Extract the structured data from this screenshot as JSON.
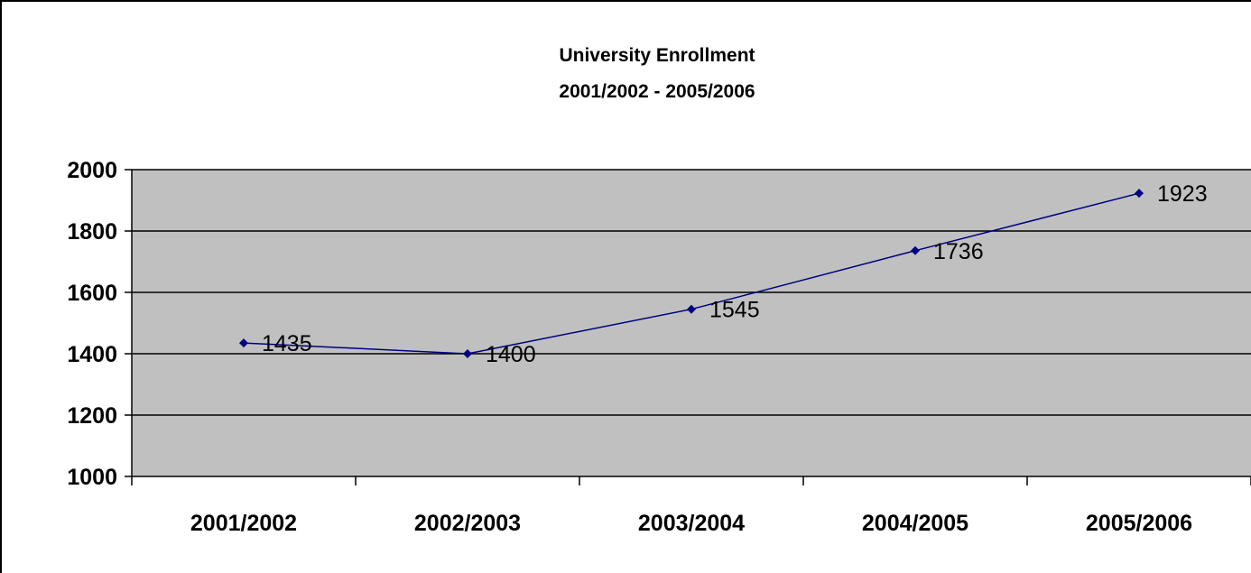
{
  "chart_data": {
    "type": "line",
    "title": "University Enrollment",
    "subtitle": "2001/2002 - 2005/2006",
    "categories": [
      "2001/2002",
      "2002/2003",
      "2003/2004",
      "2004/2005",
      "2005/2006"
    ],
    "series": [
      {
        "values": [
          1435,
          1400,
          1545,
          1736,
          1923
        ]
      }
    ],
    "data_labels": [
      "1435",
      "1400",
      "1545",
      "1736",
      "1923"
    ],
    "yticks": [
      1000,
      1200,
      1400,
      1600,
      1800,
      2000
    ],
    "ylim": [
      1000,
      2000
    ],
    "grid": true,
    "legend": "none",
    "colors": {
      "line": "#000080",
      "marker": "#000080",
      "plot_bg": "#c0c0c0",
      "gridline": "#000000",
      "axis": "#000000",
      "background": "#ffffff"
    }
  }
}
